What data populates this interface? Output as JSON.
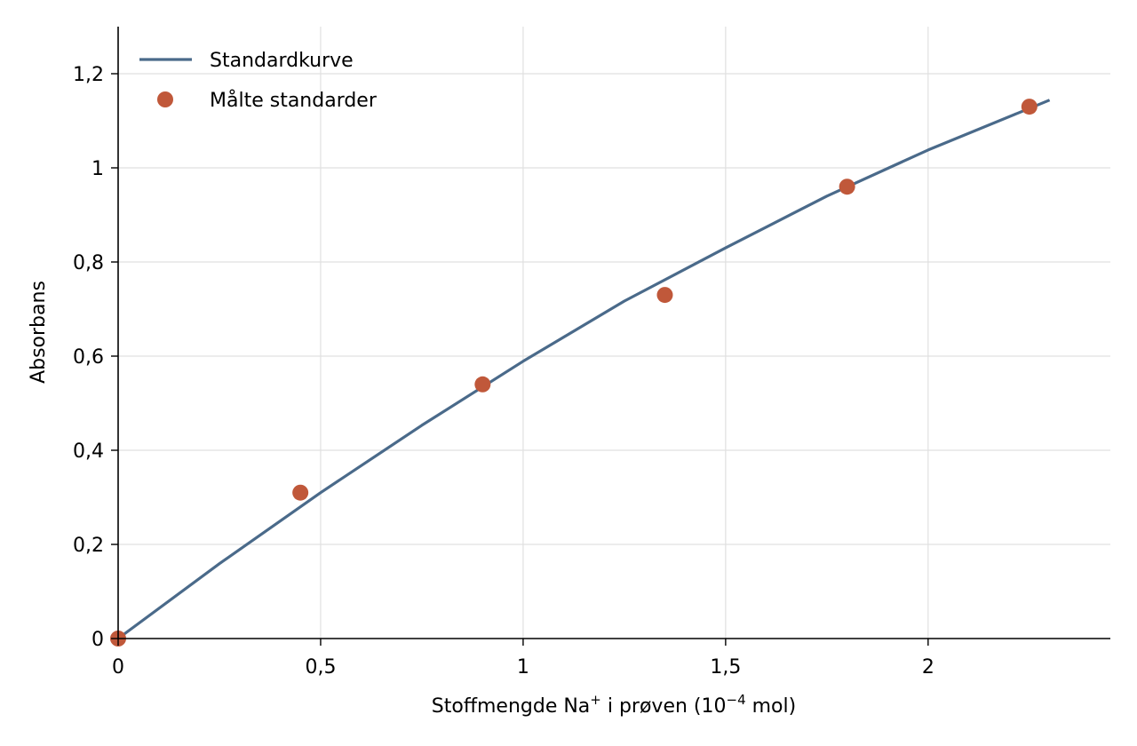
{
  "chart_data": {
    "type": "scatter",
    "xlabel": {
      "base": "Stoffmengde Na",
      "base_sup": "+",
      "middle": " i prøven (10",
      "middle_sup": "−4",
      "end": " mol)"
    },
    "ylabel": "Absorbans",
    "xlim": [
      0,
      2.45
    ],
    "ylim": [
      0,
      1.3
    ],
    "x_ticks": [
      {
        "value": 0,
        "label": "0"
      },
      {
        "value": 0.5,
        "label": "0,5"
      },
      {
        "value": 1,
        "label": "1"
      },
      {
        "value": 1.5,
        "label": "1,5"
      },
      {
        "value": 2,
        "label": "2"
      }
    ],
    "y_ticks": [
      {
        "value": 0,
        "label": "0"
      },
      {
        "value": 0.2,
        "label": "0,2"
      },
      {
        "value": 0.4,
        "label": "0,4"
      },
      {
        "value": 0.6,
        "label": "0,6"
      },
      {
        "value": 0.8,
        "label": "0,8"
      },
      {
        "value": 1,
        "label": "1"
      },
      {
        "value": 1.2,
        "label": "1,2"
      }
    ],
    "grid": true,
    "legend_position": "top-left",
    "series": [
      {
        "name": "Standardkurve",
        "kind": "line",
        "color": "#4a6a8a",
        "x": [
          0,
          0.25,
          0.5,
          0.75,
          1.0,
          1.25,
          1.5,
          1.75,
          2.0,
          2.3
        ],
        "y": [
          0,
          0.159,
          0.31,
          0.453,
          0.589,
          0.717,
          0.83,
          0.94,
          1.038,
          1.144
        ]
      },
      {
        "name": "Målte standarder",
        "kind": "scatter",
        "color": "#c0583a",
        "x": [
          0,
          0.45,
          0.9,
          1.35,
          1.8,
          2.25
        ],
        "y": [
          0,
          0.31,
          0.54,
          0.73,
          0.96,
          1.13
        ]
      }
    ]
  }
}
